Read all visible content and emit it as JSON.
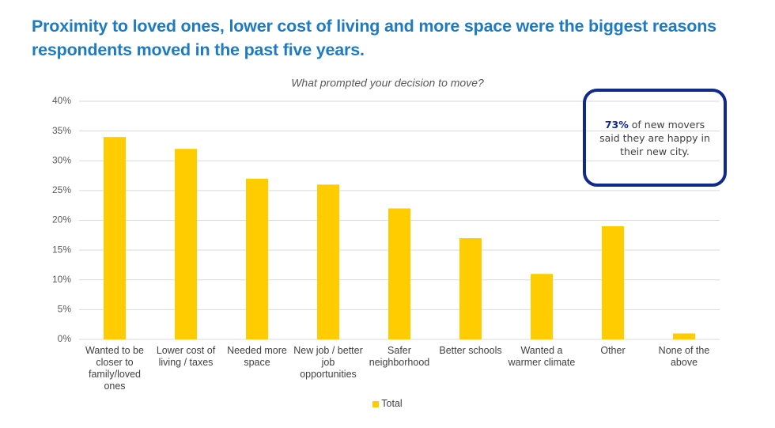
{
  "chart_data": {
    "type": "bar",
    "title": "Proximity to loved ones, lower cost of living and more space were the biggest reasons respondents moved in the past five years.",
    "subtitle": "What prompted your decision to move?",
    "categories": [
      "Wanted to be closer to family/loved ones",
      "Lower cost of living / taxes",
      "Needed more space",
      "New job / better job opportunities",
      "Safer neighborhood",
      "Better schools",
      "Wanted a warmer climate",
      "Other",
      "None of the above"
    ],
    "series": [
      {
        "name": "Total",
        "color": "#ffcc00",
        "values": [
          34,
          32,
          27,
          26,
          22,
          17,
          11,
          19,
          1
        ]
      }
    ],
    "ylim": [
      0,
      40
    ],
    "yticks": [
      {
        "value": 0,
        "label": "0%"
      },
      {
        "value": 5,
        "label": "5%"
      },
      {
        "value": 10,
        "label": "10%"
      },
      {
        "value": 15,
        "label": "15%"
      },
      {
        "value": 20,
        "label": "20%"
      },
      {
        "value": 25,
        "label": "25%"
      },
      {
        "value": 30,
        "label": "30%"
      },
      {
        "value": 35,
        "label": "35%"
      },
      {
        "value": 40,
        "label": "40%"
      }
    ],
    "grid": true,
    "legend": "bottom",
    "annotation": {
      "highlight": "73%",
      "text": "of new movers said they are happy in their new city."
    }
  }
}
